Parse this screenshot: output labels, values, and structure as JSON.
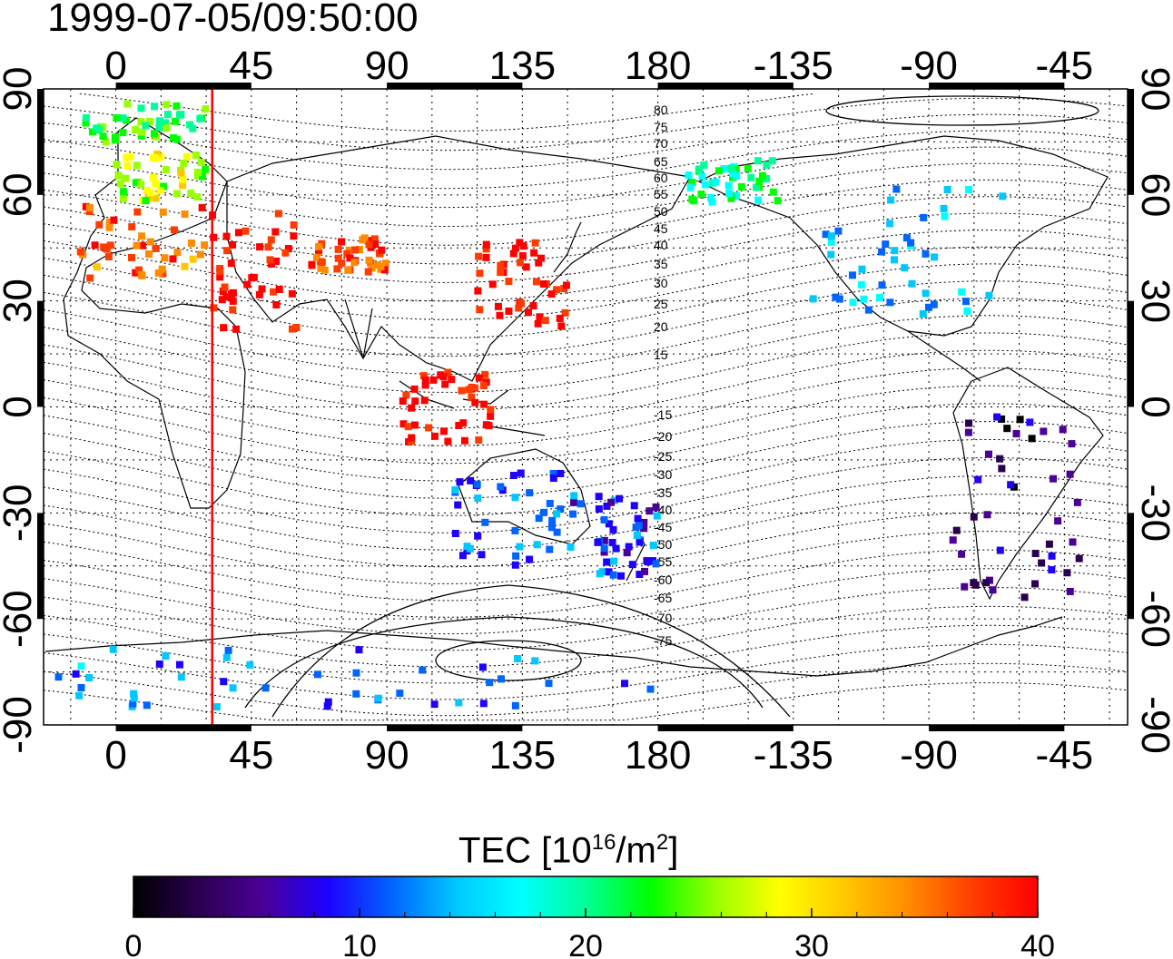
{
  "timestamp": "1999-07-05/09:50:00",
  "colorbar": {
    "label_prefix": "TEC  [10",
    "label_exp": "16",
    "label_mid": "/m",
    "label_exp2": "2",
    "label_suffix": "]",
    "ticks": [
      "0",
      "10",
      "20",
      "30",
      "40"
    ],
    "range": [
      0,
      40
    ],
    "colormap": [
      "#000000",
      "#2a0050",
      "#4b0096",
      "#1e00ff",
      "#0064ff",
      "#00c8ff",
      "#00ffff",
      "#00ff96",
      "#00ff00",
      "#96ff00",
      "#ffff00",
      "#ffc800",
      "#ff8c00",
      "#ff3c00",
      "#ff0000"
    ]
  },
  "map": {
    "lon_tick_labels_top": [
      "0",
      "45",
      "90",
      "135",
      "180",
      "-135",
      "-90",
      "-45"
    ],
    "lon_tick_labels_bottom": [
      "0",
      "45",
      "90",
      "135",
      "180",
      "-135",
      "-90",
      "-45"
    ],
    "lat_tick_labels_left": [
      "90",
      "60",
      "30",
      "0",
      "-30",
      "-60",
      "-90"
    ],
    "lat_tick_labels_right": [
      "90",
      "60",
      "30",
      "0",
      "-30",
      "-60",
      "-90"
    ],
    "contour_labels": [
      "80",
      "75",
      "70",
      "65",
      "60",
      "55",
      "50",
      "45",
      "40",
      "35",
      "30",
      "25",
      "20",
      "15",
      "-15",
      "-20",
      "-25",
      "-30",
      "-35",
      "-40",
      "-45",
      "-50",
      "-55",
      "-60",
      "-65",
      "-70",
      "-75"
    ],
    "meridian_marker_lon": 32,
    "clusters": [
      {
        "region": "europe",
        "lon": [
          -12,
          30
        ],
        "lat": [
          36,
          58
        ],
        "tec": 36
      },
      {
        "region": "scandinavia",
        "lon": [
          0,
          30
        ],
        "lat": [
          58,
          72
        ],
        "tec": 27
      },
      {
        "region": "arctic-europe",
        "lon": [
          -10,
          30
        ],
        "lat": [
          75,
          86
        ],
        "tec": 23
      },
      {
        "region": "middle-east",
        "lon": [
          32,
          60
        ],
        "lat": [
          22,
          55
        ],
        "tec": 40
      },
      {
        "region": "central-asia",
        "lon": [
          65,
          90
        ],
        "lat": [
          38,
          48
        ],
        "tec": 37
      },
      {
        "region": "japan-china",
        "lon": [
          120,
          150
        ],
        "lat": [
          22,
          48
        ],
        "tec": 40
      },
      {
        "region": "se-asia",
        "lon": [
          95,
          125
        ],
        "lat": [
          -10,
          10
        ],
        "tec": 40
      },
      {
        "region": "australia",
        "lon": [
          112,
          155
        ],
        "lat": [
          -45,
          -18
        ],
        "tec": 11
      },
      {
        "region": "new-zealand",
        "lon": [
          160,
          180
        ],
        "lat": [
          -48,
          -25
        ],
        "tec": 10
      },
      {
        "region": "north-america",
        "lon": [
          -130,
          -65
        ],
        "lat": [
          25,
          62
        ],
        "tec": 14
      },
      {
        "region": "alaska",
        "lon": [
          -170,
          -140
        ],
        "lat": [
          58,
          70
        ],
        "tec": 20
      },
      {
        "region": "south-america",
        "lon": [
          -82,
          -40
        ],
        "lat": [
          -55,
          0
        ],
        "tec": 4
      },
      {
        "region": "antarctica",
        "lon": [
          -20,
          180
        ],
        "lat": [
          -85,
          -68
        ],
        "tec": 12
      }
    ]
  }
}
